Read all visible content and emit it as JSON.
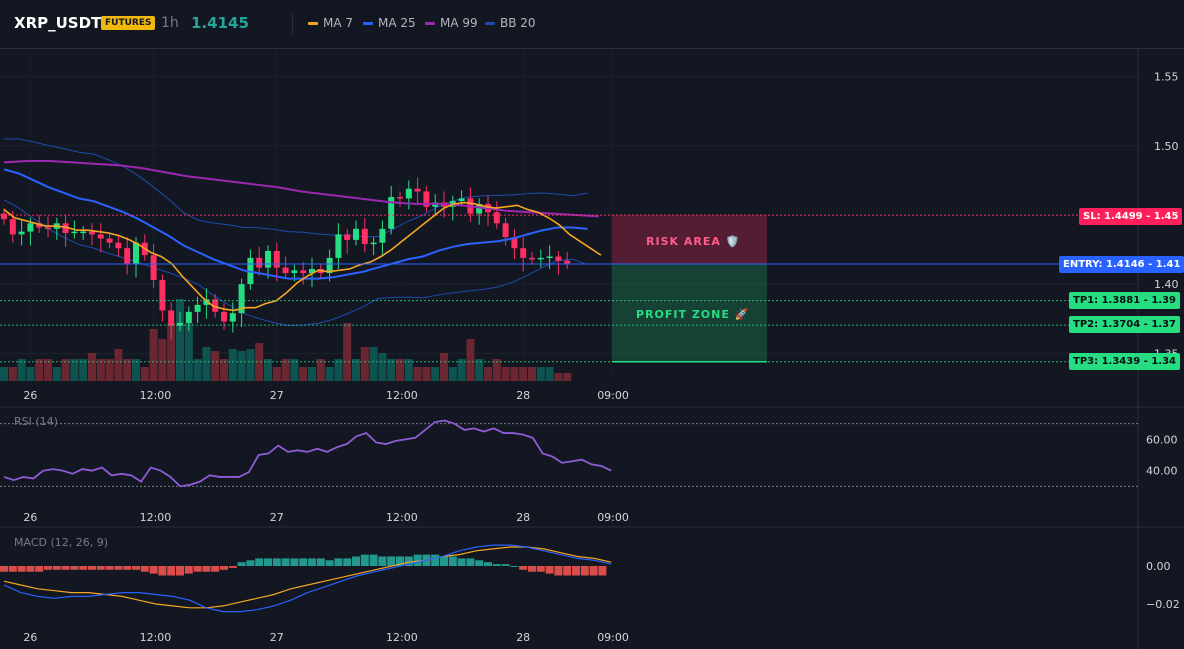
{
  "header": {
    "symbol": "XRP_USDT",
    "badge": "FUTURES",
    "timeframe": "1h",
    "last_price": "1.4145",
    "legend": [
      {
        "label": "MA 7",
        "color": "#f5a623"
      },
      {
        "label": "MA 25",
        "color": "#2962ff"
      },
      {
        "label": "MA 99",
        "color": "#9c27b0"
      },
      {
        "label": "BB 20",
        "color": "#1e4bb0"
      }
    ]
  },
  "colors": {
    "up": "#089981",
    "down": "#f23645",
    "up_bright": "#26de81",
    "down_bright": "#ff2e63"
  },
  "chart_data": [
    {
      "type": "candlestick",
      "pane": "price",
      "y_axis_ticks": [
        "1.55",
        "1.50",
        "1.40",
        "1.35"
      ],
      "ylim": [
        1.33,
        1.57
      ],
      "x_axis_ticks": [
        "26",
        "12:00",
        "27",
        "12:00",
        "28",
        "09:00"
      ],
      "closes": [
        1.447,
        1.436,
        1.438,
        1.444,
        1.441,
        1.44,
        1.444,
        1.437,
        1.438,
        1.438,
        1.436,
        1.433,
        1.43,
        1.426,
        1.415,
        1.43,
        1.421,
        1.403,
        1.381,
        1.37,
        1.372,
        1.38,
        1.385,
        1.389,
        1.38,
        1.373,
        1.379,
        1.4,
        1.419,
        1.412,
        1.424,
        1.412,
        1.408,
        1.41,
        1.408,
        1.411,
        1.408,
        1.419,
        1.436,
        1.432,
        1.44,
        1.429,
        1.43,
        1.44,
        1.463,
        1.462,
        1.469,
        1.467,
        1.456,
        1.459,
        1.456,
        1.46,
        1.462,
        1.451,
        1.458,
        1.452,
        1.444,
        1.434,
        1.426,
        1.419,
        1.418,
        1.419,
        1.42,
        1.417,
        1.415
      ],
      "ma7": [
        1.454,
        1.448,
        1.446,
        1.444,
        1.442,
        1.442,
        1.441,
        1.439,
        1.439,
        1.438,
        1.437,
        1.435,
        1.432,
        1.428,
        1.423,
        1.42,
        1.415,
        1.406,
        1.398,
        1.39,
        1.384,
        1.382,
        1.381,
        1.383,
        1.383,
        1.386,
        1.388,
        1.394,
        1.401,
        1.406,
        1.41,
        1.409,
        1.41,
        1.411,
        1.414,
        1.416,
        1.42,
        1.425,
        1.431,
        1.437,
        1.443,
        1.449,
        1.455,
        1.458,
        1.459,
        1.458,
        1.456,
        1.455,
        1.456,
        1.457,
        1.454,
        1.452,
        1.448,
        1.443,
        1.436,
        1.431,
        1.426,
        1.421
      ],
      "ma25": [
        1.483,
        1.48,
        1.475,
        1.47,
        1.466,
        1.462,
        1.46,
        1.456,
        1.452,
        1.447,
        1.441,
        1.435,
        1.428,
        1.423,
        1.418,
        1.414,
        1.41,
        1.408,
        1.406,
        1.404,
        1.404,
        1.404,
        1.405,
        1.407,
        1.409,
        1.412,
        1.415,
        1.418,
        1.42,
        1.424,
        1.427,
        1.429,
        1.43,
        1.431,
        1.433,
        1.436,
        1.439,
        1.441,
        1.441,
        1.44
      ],
      "ma99": [
        1.488,
        1.489,
        1.489,
        1.488,
        1.487,
        1.486,
        1.484,
        1.481,
        1.478,
        1.476,
        1.474,
        1.472,
        1.47,
        1.467,
        1.465,
        1.463,
        1.461,
        1.459,
        1.458,
        1.458,
        1.457,
        1.455,
        1.453,
        1.452,
        1.451,
        1.45,
        1.449
      ],
      "volume": [
        14,
        14,
        22,
        14,
        22,
        22,
        14,
        22,
        22,
        22,
        28,
        22,
        22,
        32,
        22,
        22,
        14,
        52,
        42,
        58,
        82,
        58,
        22,
        34,
        30,
        22,
        32,
        30,
        32,
        38,
        22,
        14,
        22,
        22,
        14,
        14,
        22,
        14,
        22,
        58,
        22,
        34,
        34,
        28,
        22,
        22,
        22,
        14,
        14,
        14,
        28,
        14,
        22,
        42,
        22,
        14,
        22,
        14,
        14,
        14,
        14,
        14,
        14,
        8,
        8
      ],
      "annotations": [
        {
          "label": "SL: 1.4499",
          "axis": "1.45",
          "value": 1.4499
        },
        {
          "label": "ENTRY: 1.4146",
          "axis": "1.41",
          "value": 1.4146
        },
        {
          "label": "TP1: 1.3881",
          "axis": "1.39",
          "value": 1.3881
        },
        {
          "label": "TP2: 1.3704",
          "axis": "1.37",
          "value": 1.3704
        },
        {
          "label": "TP3: 1.3439",
          "axis": "1.34",
          "value": 1.3439
        }
      ],
      "zones": [
        {
          "label": "RISK AREA 🛡️",
          "from": 1.4146,
          "to": 1.4499
        },
        {
          "label": "PROFIT ZONE 🚀",
          "from": 1.3439,
          "to": 1.4146
        }
      ]
    },
    {
      "type": "line",
      "pane": "rsi",
      "title": "RSI (14)",
      "y_axis_ticks": [
        "60.00",
        "40.00"
      ],
      "ylim": [
        20,
        80
      ],
      "bands": [
        70,
        30
      ],
      "x_axis_ticks": [
        "26",
        "12:00",
        "27",
        "12:00",
        "28",
        "09:00"
      ],
      "values": [
        36,
        34,
        36,
        35,
        40,
        41,
        40,
        38,
        41,
        40,
        42,
        37,
        38,
        37,
        33,
        42,
        40,
        36,
        30,
        31,
        33,
        37,
        36,
        36,
        36,
        39,
        50,
        51,
        56,
        52,
        53,
        52,
        54,
        52,
        55,
        57,
        62,
        64,
        58,
        57,
        59,
        60,
        61,
        66,
        71,
        72,
        70,
        66,
        67,
        65,
        67,
        64,
        64,
        63,
        61,
        51,
        49,
        45,
        46,
        47,
        44,
        43,
        40
      ]
    },
    {
      "type": "line",
      "pane": "macd",
      "title": "MACD (12, 26, 9)",
      "y_axis_ticks": [
        "0.00",
        "−0.02"
      ],
      "ylim": [
        -0.03,
        0.02
      ],
      "x_axis_ticks": [
        "26",
        "12:00",
        "27",
        "12:00",
        "28",
        "09:00"
      ],
      "macd": [
        -0.01,
        -0.014,
        -0.016,
        -0.017,
        -0.016,
        -0.016,
        -0.015,
        -0.014,
        -0.014,
        -0.015,
        -0.016,
        -0.018,
        -0.022,
        -0.024,
        -0.024,
        -0.023,
        -0.021,
        -0.018,
        -0.014,
        -0.011,
        -0.008,
        -0.005,
        -0.003,
        -0.001,
        0.001,
        0.003,
        0.005,
        0.008,
        0.01,
        0.011,
        0.011,
        0.01,
        0.008,
        0.006,
        0.004,
        0.003,
        0.001
      ],
      "signal": [
        -0.008,
        -0.01,
        -0.012,
        -0.013,
        -0.014,
        -0.014,
        -0.015,
        -0.016,
        -0.018,
        -0.02,
        -0.021,
        -0.022,
        -0.022,
        -0.021,
        -0.019,
        -0.017,
        -0.015,
        -0.012,
        -0.01,
        -0.008,
        -0.006,
        -0.004,
        -0.002,
        0.0,
        0.002,
        0.003,
        0.005,
        0.006,
        0.008,
        0.009,
        0.01,
        0.01,
        0.009,
        0.007,
        0.005,
        0.004,
        0.002
      ],
      "histogram": [
        -0.003,
        -0.003,
        -0.003,
        -0.003,
        -0.003,
        -0.002,
        -0.002,
        -0.002,
        -0.002,
        -0.002,
        -0.002,
        -0.002,
        -0.002,
        -0.002,
        -0.002,
        -0.002,
        -0.003,
        -0.004,
        -0.005,
        -0.005,
        -0.005,
        -0.004,
        -0.003,
        -0.003,
        -0.003,
        -0.002,
        -0.001,
        0.002,
        0.003,
        0.004,
        0.004,
        0.004,
        0.004,
        0.004,
        0.004,
        0.004,
        0.004,
        0.003,
        0.004,
        0.004,
        0.005,
        0.006,
        0.006,
        0.005,
        0.005,
        0.005,
        0.005,
        0.006,
        0.006,
        0.006,
        0.005,
        0.005,
        0.004,
        0.004,
        0.003,
        0.002,
        0.001,
        0.001,
        0.0,
        -0.002,
        -0.003,
        -0.003,
        -0.004,
        -0.005,
        -0.005,
        -0.005,
        -0.005,
        -0.005,
        -0.005
      ]
    }
  ]
}
